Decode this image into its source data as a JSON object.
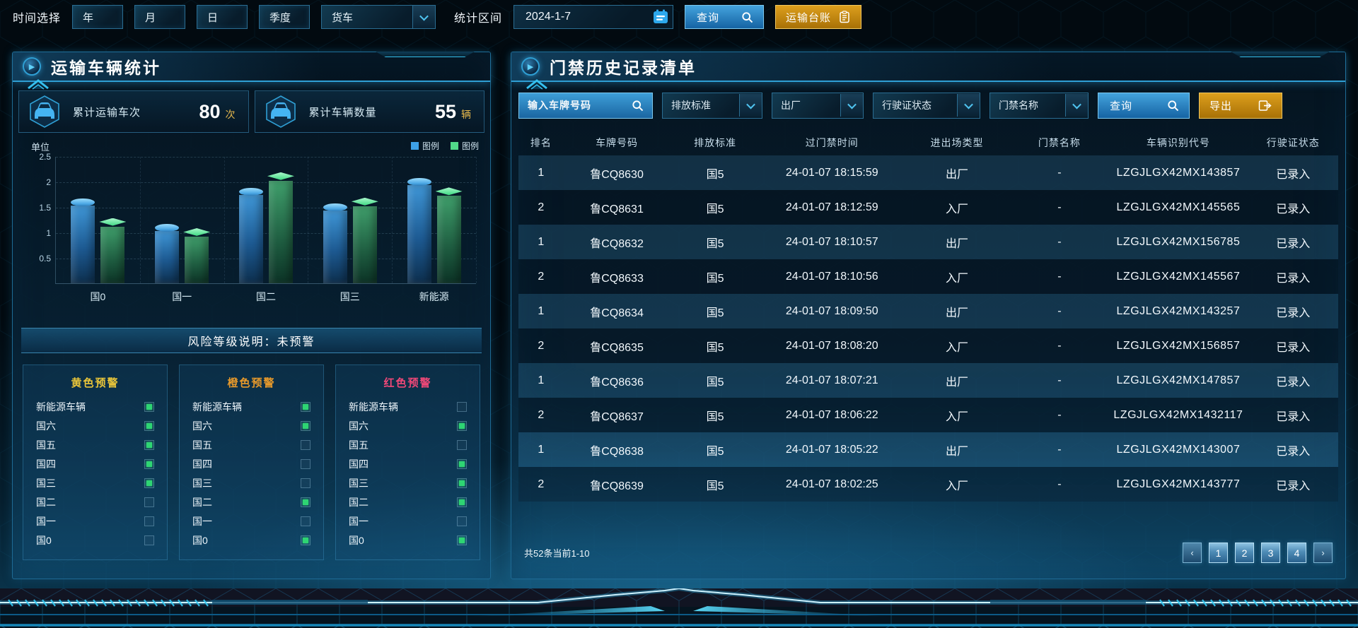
{
  "topbar": {
    "time_label": "时间选择",
    "time_buttons": [
      "年",
      "月",
      "日",
      "季度"
    ],
    "vehicle_select": "货车",
    "range_label": "统计区间",
    "date_value": "2024-1-7",
    "query_label": "查询",
    "ledger_label": "运输台账"
  },
  "left_panel": {
    "title": "运输车辆统计",
    "stats": [
      {
        "label": "累计运输车次",
        "value": "80",
        "unit": "次"
      },
      {
        "label": "累计车辆数量",
        "value": "55",
        "unit": "辆"
      }
    ],
    "risk_note": "风险等级说明：未预警",
    "warning_columns": [
      {
        "title": "黄色预警",
        "color": "#e8c53a",
        "items": [
          {
            "label": "新能源车辆",
            "checked": true
          },
          {
            "label": "国六",
            "checked": true
          },
          {
            "label": "国五",
            "checked": true
          },
          {
            "label": "国四",
            "checked": true
          },
          {
            "label": "国三",
            "checked": true
          },
          {
            "label": "国二",
            "checked": false
          },
          {
            "label": "国一",
            "checked": false
          },
          {
            "label": "国0",
            "checked": false
          }
        ]
      },
      {
        "title": "橙色预警",
        "color": "#e89a2b",
        "items": [
          {
            "label": "新能源车辆",
            "checked": true
          },
          {
            "label": "国六",
            "checked": true
          },
          {
            "label": "国五",
            "checked": false
          },
          {
            "label": "国四",
            "checked": false
          },
          {
            "label": "国三",
            "checked": false
          },
          {
            "label": "国二",
            "checked": true
          },
          {
            "label": "国一",
            "checked": false
          },
          {
            "label": "国0",
            "checked": true
          }
        ]
      },
      {
        "title": "红色预警",
        "color": "#f04878",
        "items": [
          {
            "label": "新能源车辆",
            "checked": false
          },
          {
            "label": "国六",
            "checked": true
          },
          {
            "label": "国五",
            "checked": false
          },
          {
            "label": "国四",
            "checked": true
          },
          {
            "label": "国三",
            "checked": true
          },
          {
            "label": "国二",
            "checked": true
          },
          {
            "label": "国一",
            "checked": false
          },
          {
            "label": "国0",
            "checked": true
          }
        ]
      }
    ]
  },
  "chart_data": {
    "type": "bar",
    "title": "",
    "unit_label": "单位",
    "categories": [
      "国0",
      "国一",
      "国二",
      "国三",
      "新能源"
    ],
    "series": [
      {
        "name": "图例",
        "color": "#3da1e8",
        "shape": "cylinder",
        "values": [
          1.6,
          1.1,
          1.8,
          1.5,
          2.0
        ]
      },
      {
        "name": "图例",
        "color": "#52d98a",
        "shape": "cuboid",
        "values": [
          1.2,
          1.0,
          2.1,
          1.6,
          1.8
        ]
      }
    ],
    "xlabel": "",
    "ylabel": "单位",
    "yticks": [
      0.5,
      1,
      1.5,
      2,
      2.5
    ],
    "ylim": [
      0,
      2.5
    ],
    "grid": true,
    "legend_position": "top-right"
  },
  "right_panel": {
    "title": "门禁历史记录清单",
    "filters": {
      "plate_placeholder": "输入车牌号码",
      "dropdowns": [
        "排放标准",
        "出厂",
        "行驶证状态",
        "门禁名称"
      ],
      "query_label": "查询",
      "export_label": "导出"
    },
    "table": {
      "columns": [
        "排名",
        "车牌号码",
        "排放标准",
        "过门禁时间",
        "进出场类型",
        "门禁名称",
        "车辆识别代号",
        "行驶证状态"
      ],
      "rows": [
        [
          "1",
          "鲁CQ8630",
          "国5",
          "24-01-07 18:15:59",
          "出厂",
          "-",
          "LZGJLGX42MX143857",
          "已录入"
        ],
        [
          "2",
          "鲁CQ8631",
          "国5",
          "24-01-07 18:12:59",
          "入厂",
          "-",
          "LZGJLGX42MX145565",
          "已录入"
        ],
        [
          "1",
          "鲁CQ8632",
          "国5",
          "24-01-07 18:10:57",
          "出厂",
          "-",
          "LZGJLGX42MX156785",
          "已录入"
        ],
        [
          "2",
          "鲁CQ8633",
          "国5",
          "24-01-07 18:10:56",
          "入厂",
          "-",
          "LZGJLGX42MX145567",
          "已录入"
        ],
        [
          "1",
          "鲁CQ8634",
          "国5",
          "24-01-07 18:09:50",
          "出厂",
          "-",
          "LZGJLGX42MX143257",
          "已录入"
        ],
        [
          "2",
          "鲁CQ8635",
          "国5",
          "24-01-07 18:08:20",
          "入厂",
          "-",
          "LZGJLGX42MX156857",
          "已录入"
        ],
        [
          "1",
          "鲁CQ8636",
          "国5",
          "24-01-07 18:07:21",
          "出厂",
          "-",
          "LZGJLGX42MX147857",
          "已录入"
        ],
        [
          "2",
          "鲁CQ8637",
          "国5",
          "24-01-07 18:06:22",
          "入厂",
          "-",
          "LZGJLGX42MX1432117",
          "已录入"
        ],
        [
          "1",
          "鲁CQ8638",
          "国5",
          "24-01-07 18:05:22",
          "出厂",
          "-",
          "LZGJLGX42MX143007",
          "已录入"
        ],
        [
          "2",
          "鲁CQ8639",
          "国5",
          "24-01-07 18:02:25",
          "入厂",
          "-",
          "LZGJLGX42MX143777",
          "已录入"
        ]
      ]
    },
    "pagination": {
      "summary": "共52条当前1-10",
      "prev": "‹",
      "pages": [
        "1",
        "2",
        "3",
        "4"
      ],
      "next": "›"
    }
  },
  "colors": {
    "accent_cyan": "#35c0ee",
    "button_blue": "#2f8cc6",
    "button_orange": "#d9941a",
    "check_green": "#2ed573",
    "vin_green": "#3ecb78",
    "unit_gold": "#e6b84c"
  }
}
